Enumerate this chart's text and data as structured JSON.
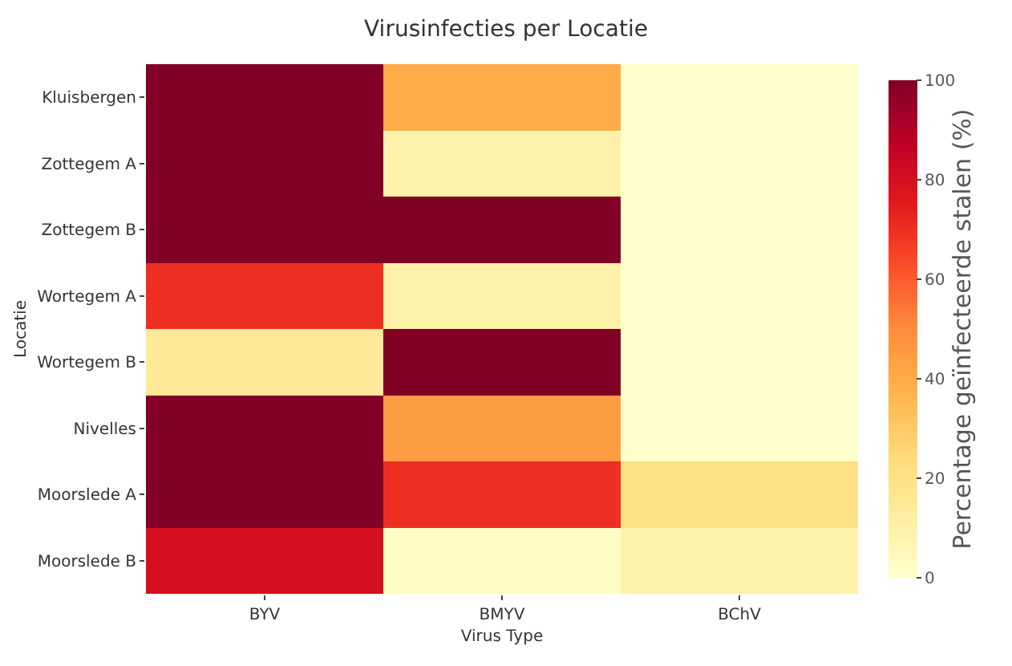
{
  "chart_data": {
    "type": "heatmap",
    "title": "Virusinfecties per Locatie",
    "xlabel": "Virus Type",
    "ylabel": "Locatie",
    "clabel": "Percentage geïnfecteerde stalen (%)",
    "categories": [
      "BYV",
      "BMYV",
      "BChV"
    ],
    "y_categories": [
      "Kluisbergen",
      "Zottegem A",
      "Zottegem B",
      "Wortegem A",
      "Wortegem B",
      "Nivelles",
      "Moorslede A",
      "Moorslede B"
    ],
    "cells": [
      [
        100,
        40,
        0
      ],
      [
        100,
        10,
        0
      ],
      [
        100,
        100,
        0
      ],
      [
        70,
        10,
        0
      ],
      [
        15,
        100,
        0
      ],
      [
        100,
        45,
        0
      ],
      [
        100,
        70,
        20
      ],
      [
        80,
        2,
        10
      ]
    ],
    "clim": [
      0,
      100
    ],
    "cticks": [
      0,
      20,
      40,
      60,
      80,
      100
    ]
  }
}
